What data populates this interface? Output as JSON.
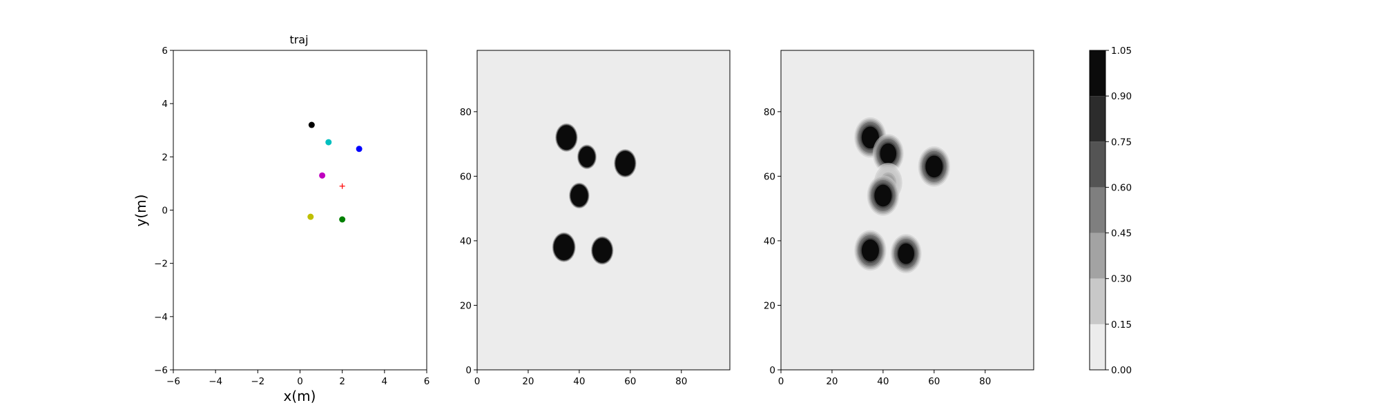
{
  "chart_data": [
    {
      "type": "scatter",
      "title": "traj",
      "xlabel": "x(m)",
      "ylabel": "y(m)",
      "xlim": [
        -6,
        6
      ],
      "ylim": [
        -6,
        6
      ],
      "xticks": [
        -6,
        -4,
        -2,
        0,
        2,
        4,
        6
      ],
      "yticks": [
        -6,
        -4,
        -2,
        0,
        2,
        4,
        6
      ],
      "xtick_labels": [
        "−6",
        "−4",
        "−2",
        "0",
        "2",
        "4",
        "6"
      ],
      "ytick_labels": [
        "−6",
        "−4",
        "−2",
        "0",
        "2",
        "4",
        "6"
      ],
      "grid": false,
      "points": [
        {
          "x": 0.55,
          "y": 3.2,
          "color": "#000000",
          "marker": "circle"
        },
        {
          "x": 1.35,
          "y": 2.55,
          "color": "#00bfbf",
          "marker": "circle"
        },
        {
          "x": 2.8,
          "y": 2.3,
          "color": "#0000ff",
          "marker": "circle"
        },
        {
          "x": 1.05,
          "y": 1.3,
          "color": "#bf00bf",
          "marker": "circle"
        },
        {
          "x": 2.0,
          "y": 0.9,
          "color": "#ff0000",
          "marker": "plus"
        },
        {
          "x": 0.5,
          "y": -0.25,
          "color": "#bfbf00",
          "marker": "circle"
        },
        {
          "x": 2.0,
          "y": -0.35,
          "color": "#008000",
          "marker": "circle"
        }
      ]
    },
    {
      "type": "heatmap",
      "xlim": [
        0,
        99
      ],
      "ylim": [
        0,
        99
      ],
      "xticks": [
        0,
        20,
        40,
        60,
        80
      ],
      "yticks": [
        0,
        20,
        40,
        60,
        80
      ],
      "xtick_labels": [
        "0",
        "20",
        "40",
        "60",
        "80"
      ],
      "ytick_labels": [
        "0",
        "20",
        "40",
        "60",
        "80"
      ],
      "background_value": 0.1,
      "blobs": [
        {
          "x": 35,
          "y": 72,
          "r": 3.8,
          "value": 1.0,
          "blur": 0.3
        },
        {
          "x": 43,
          "y": 66,
          "r": 3.2,
          "value": 1.0,
          "blur": 0.3
        },
        {
          "x": 58,
          "y": 64,
          "r": 3.8,
          "value": 1.0,
          "blur": 0.3
        },
        {
          "x": 40,
          "y": 54,
          "r": 3.4,
          "value": 1.0,
          "blur": 0.3
        },
        {
          "x": 34,
          "y": 38,
          "r": 4.0,
          "value": 1.0,
          "blur": 0.3
        },
        {
          "x": 49,
          "y": 37,
          "r": 3.8,
          "value": 1.0,
          "blur": 0.3
        }
      ]
    },
    {
      "type": "heatmap",
      "xlim": [
        0,
        99
      ],
      "ylim": [
        0,
        99
      ],
      "xticks": [
        0,
        20,
        40,
        60,
        80
      ],
      "yticks": [
        0,
        20,
        40,
        60,
        80
      ],
      "xtick_labels": [
        "0",
        "20",
        "40",
        "60",
        "80"
      ],
      "ytick_labels": [
        "0",
        "20",
        "40",
        "60",
        "80"
      ],
      "background_value": 0.1,
      "blobs": [
        {
          "x": 35,
          "y": 72,
          "r": 3.4,
          "value": 1.0,
          "blur": 1.3
        },
        {
          "x": 42,
          "y": 67,
          "r": 3.2,
          "value": 1.0,
          "blur": 1.3
        },
        {
          "x": 60,
          "y": 63,
          "r": 3.4,
          "value": 1.0,
          "blur": 1.3
        },
        {
          "x": 42,
          "y": 58,
          "r": 2.6,
          "value": 0.35,
          "blur": 1.6
        },
        {
          "x": 40,
          "y": 54,
          "r": 3.4,
          "value": 1.0,
          "blur": 1.3
        },
        {
          "x": 35,
          "y": 37,
          "r": 3.4,
          "value": 1.0,
          "blur": 1.3
        },
        {
          "x": 49,
          "y": 36,
          "r": 3.2,
          "value": 1.0,
          "blur": 1.3
        }
      ]
    }
  ],
  "colorbar": {
    "ticks": [
      "0.00",
      "0.15",
      "0.30",
      "0.45",
      "0.60",
      "0.75",
      "0.90",
      "1.05"
    ],
    "levels": [
      0.0,
      0.15,
      0.3,
      0.45,
      0.6,
      0.75,
      0.9,
      1.05
    ],
    "colors": [
      "#ececec",
      "#c8c8c8",
      "#a3a3a3",
      "#7f7f7f",
      "#545454",
      "#2c2c2c",
      "#0b0b0b"
    ]
  }
}
